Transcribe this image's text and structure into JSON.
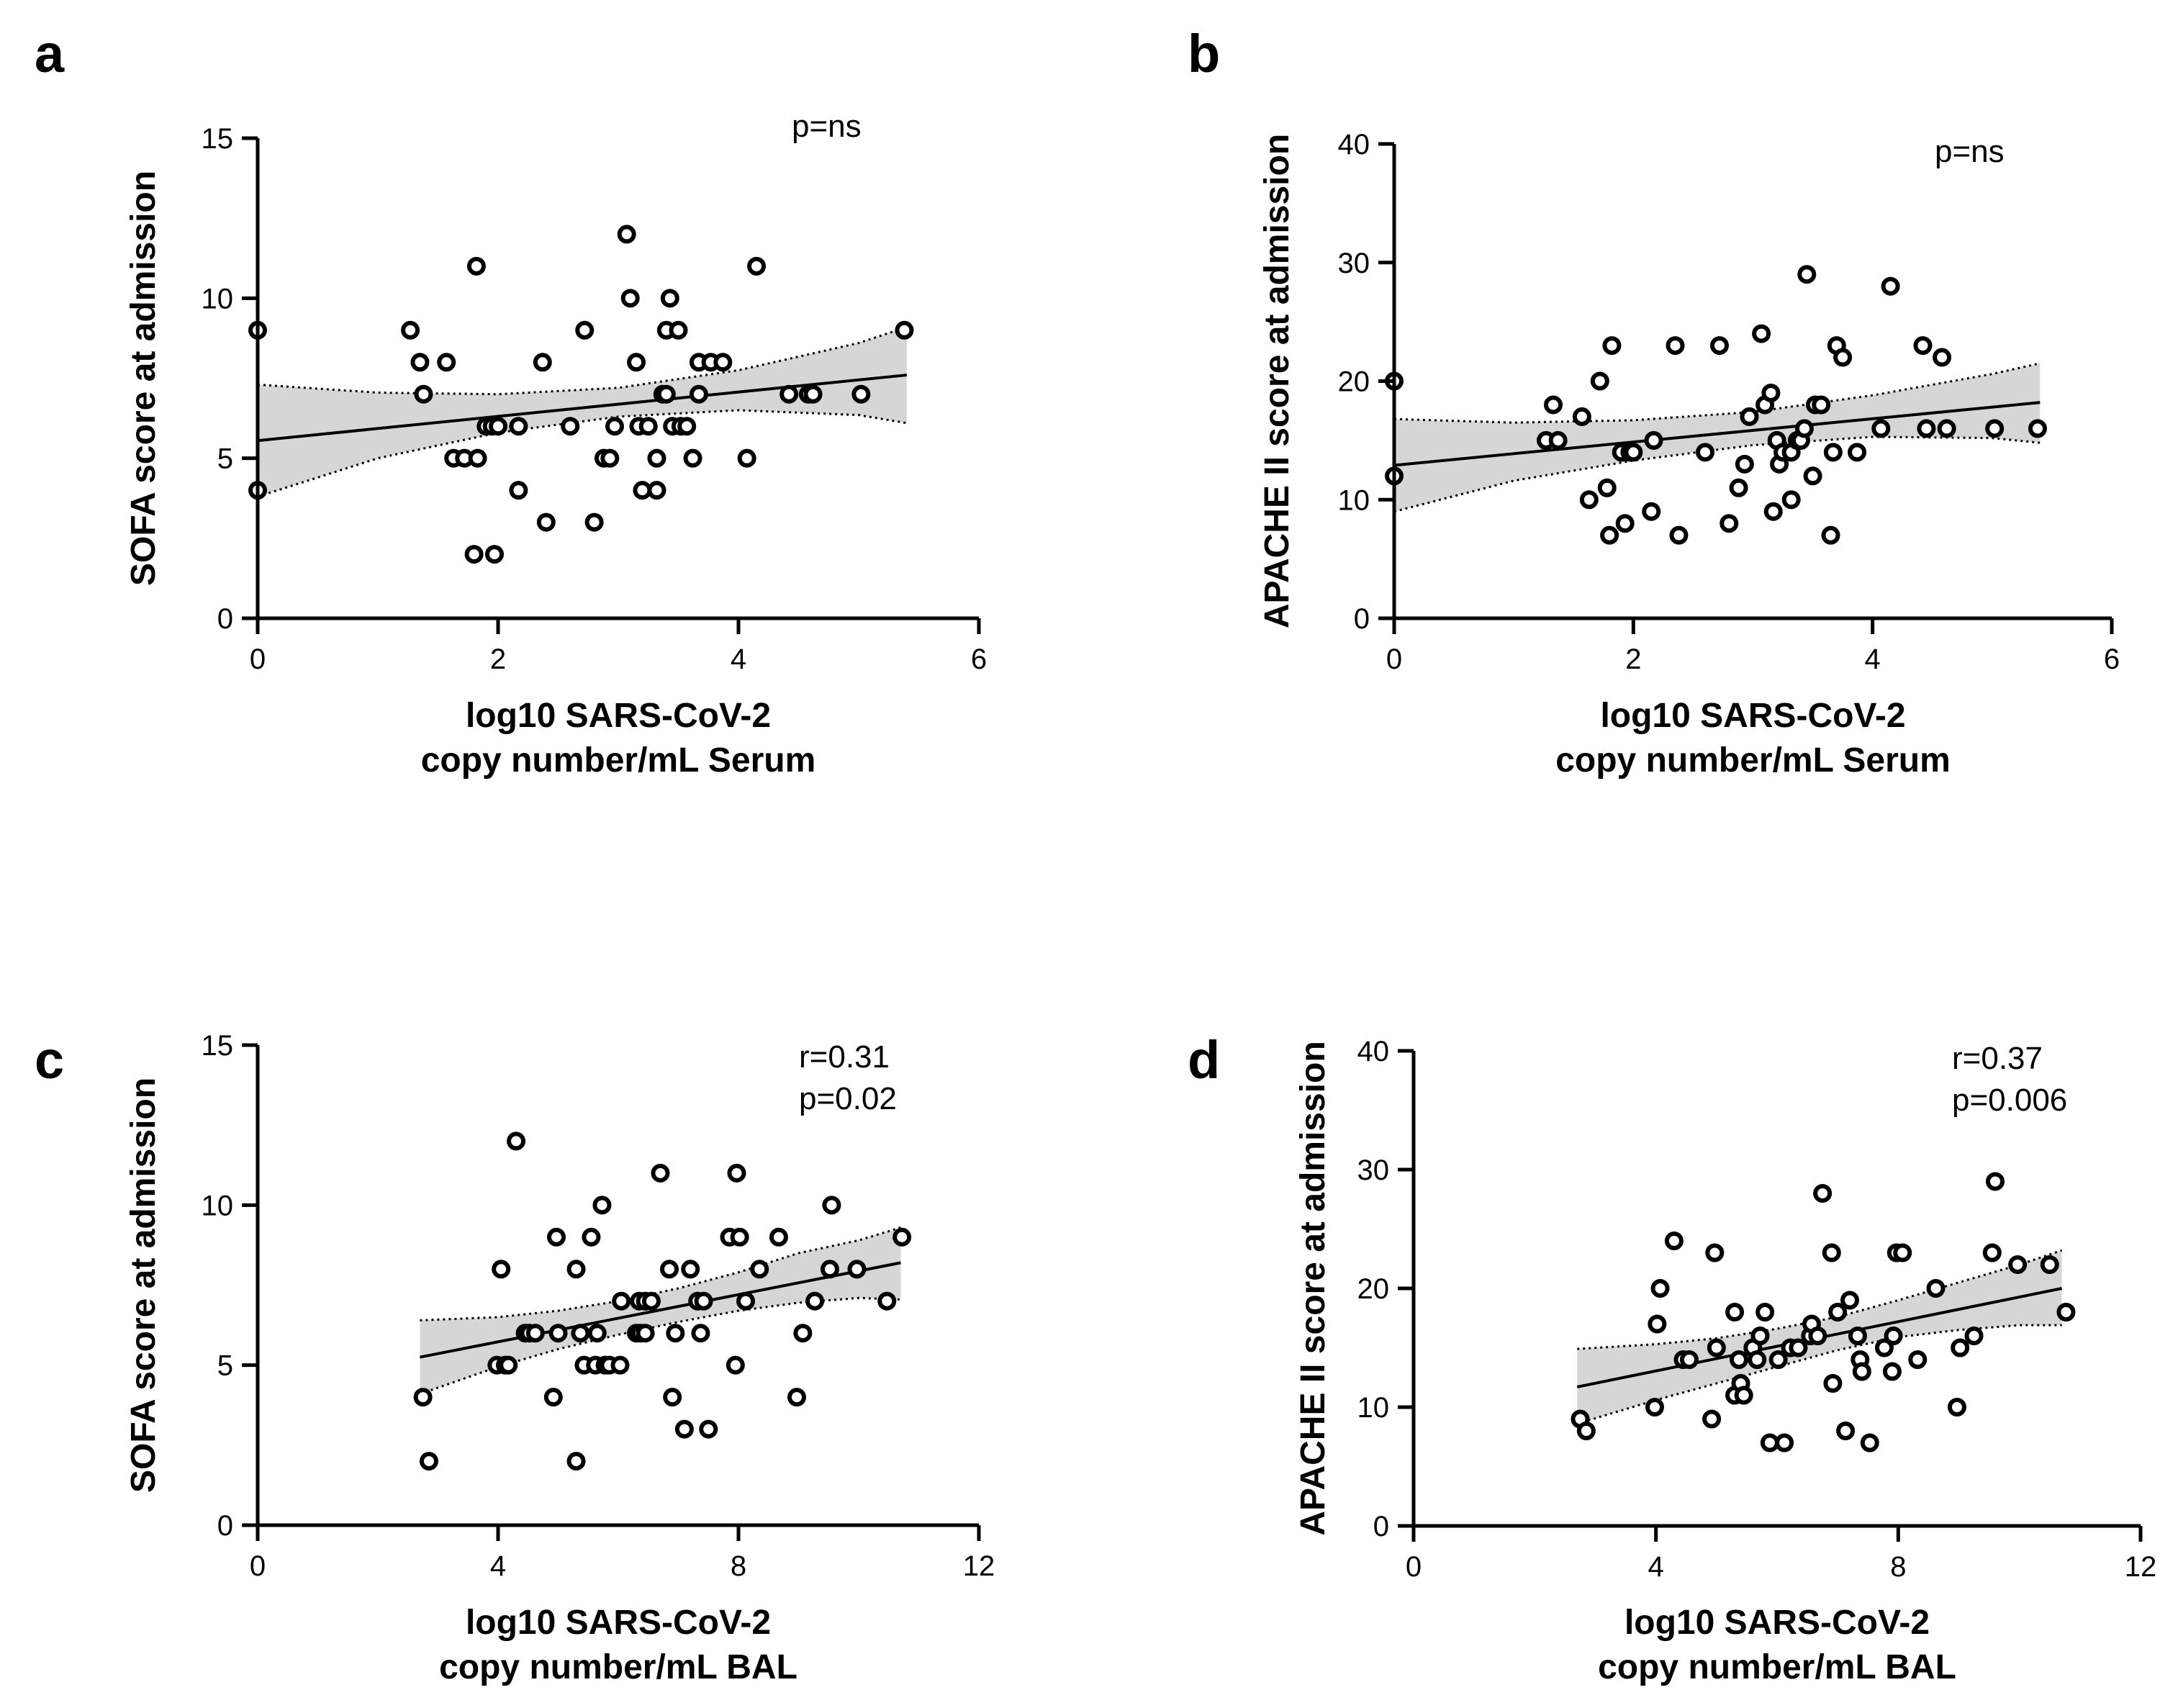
{
  "chart_data": [
    {
      "id": "a",
      "type": "scatter",
      "panel_label": "a",
      "ylabel": "SOFA score at admission",
      "xlabel_lines": [
        "log10 SARS-CoV-2",
        "copy number/mL Serum"
      ],
      "xlim": [
        0,
        6
      ],
      "ylim": [
        0,
        15
      ],
      "xticks": [
        0,
        2,
        4,
        6
      ],
      "yticks": [
        0,
        5,
        10,
        15
      ],
      "annotations": [
        "p=ns"
      ],
      "fit": {
        "x_range": [
          0,
          5.4
        ],
        "y_start": 5.55,
        "y_end": 7.6
      },
      "ci_upper": [
        [
          0,
          7.3
        ],
        [
          1,
          7.05
        ],
        [
          2,
          7.0
        ],
        [
          3,
          7.2
        ],
        [
          4,
          7.75
        ],
        [
          5,
          8.6
        ],
        [
          5.4,
          9.1
        ]
      ],
      "ci_lower": [
        [
          0,
          3.8
        ],
        [
          1,
          5.0
        ],
        [
          2,
          5.8
        ],
        [
          3,
          6.3
        ],
        [
          4,
          6.5
        ],
        [
          5,
          6.35
        ],
        [
          5.4,
          6.1
        ]
      ],
      "points": [
        [
          0,
          9
        ],
        [
          0,
          4
        ],
        [
          1.27,
          9
        ],
        [
          1.35,
          8
        ],
        [
          1.38,
          7
        ],
        [
          1.57,
          8
        ],
        [
          1.63,
          5
        ],
        [
          1.72,
          5
        ],
        [
          1.8,
          2
        ],
        [
          1.82,
          11
        ],
        [
          1.83,
          5
        ],
        [
          1.9,
          6
        ],
        [
          1.95,
          6
        ],
        [
          1.97,
          2
        ],
        [
          2.0,
          6
        ],
        [
          2.17,
          6
        ],
        [
          2.17,
          4
        ],
        [
          2.37,
          8
        ],
        [
          2.4,
          3
        ],
        [
          2.6,
          6
        ],
        [
          2.72,
          9
        ],
        [
          2.8,
          3
        ],
        [
          2.88,
          5
        ],
        [
          2.93,
          5
        ],
        [
          2.97,
          6
        ],
        [
          3.07,
          12
        ],
        [
          3.1,
          10
        ],
        [
          3.15,
          8
        ],
        [
          3.17,
          6
        ],
        [
          3.2,
          4
        ],
        [
          3.25,
          6
        ],
        [
          3.32,
          4
        ],
        [
          3.32,
          5
        ],
        [
          3.37,
          7
        ],
        [
          3.4,
          7
        ],
        [
          3.4,
          9
        ],
        [
          3.43,
          10
        ],
        [
          3.45,
          6
        ],
        [
          3.5,
          9
        ],
        [
          3.52,
          6
        ],
        [
          3.57,
          6
        ],
        [
          3.62,
          5
        ],
        [
          3.67,
          7
        ],
        [
          3.67,
          8
        ],
        [
          3.77,
          8
        ],
        [
          3.87,
          8
        ],
        [
          4.07,
          5
        ],
        [
          4.15,
          11
        ],
        [
          4.42,
          7
        ],
        [
          4.58,
          7
        ],
        [
          4.62,
          7
        ],
        [
          5.02,
          7
        ],
        [
          5.38,
          9
        ]
      ]
    },
    {
      "id": "b",
      "type": "scatter",
      "panel_label": "b",
      "ylabel": "APACHE II score at admission",
      "xlabel_lines": [
        "log10 SARS-CoV-2",
        "copy number/mL Serum"
      ],
      "xlim": [
        0,
        6
      ],
      "ylim": [
        0,
        40
      ],
      "xticks": [
        0,
        2,
        4,
        6
      ],
      "yticks": [
        0,
        10,
        20,
        30,
        40
      ],
      "annotations": [
        "p=ns"
      ],
      "fit": {
        "x_range": [
          0,
          5.4
        ],
        "y_start": 12.9,
        "y_end": 18.2
      },
      "ci_upper": [
        [
          0,
          16.8
        ],
        [
          1,
          16.5
        ],
        [
          2,
          16.7
        ],
        [
          3,
          17.4
        ],
        [
          4,
          18.8
        ],
        [
          5,
          20.6
        ],
        [
          5.4,
          21.5
        ]
      ],
      "ci_lower": [
        [
          0,
          9.0
        ],
        [
          1,
          11.6
        ],
        [
          2,
          13.3
        ],
        [
          3,
          14.6
        ],
        [
          4,
          15.3
        ],
        [
          5,
          15.2
        ],
        [
          5.4,
          14.8
        ]
      ],
      "points": [
        [
          0,
          20
        ],
        [
          0,
          12
        ],
        [
          1.27,
          15
        ],
        [
          1.33,
          18
        ],
        [
          1.37,
          15
        ],
        [
          1.57,
          17
        ],
        [
          1.63,
          10
        ],
        [
          1.72,
          20
        ],
        [
          1.78,
          11
        ],
        [
          1.8,
          7
        ],
        [
          1.82,
          23
        ],
        [
          1.9,
          14
        ],
        [
          1.93,
          8
        ],
        [
          1.97,
          14
        ],
        [
          2.0,
          14
        ],
        [
          2.15,
          9
        ],
        [
          2.17,
          15
        ],
        [
          2.35,
          23
        ],
        [
          2.38,
          7
        ],
        [
          2.6,
          14
        ],
        [
          2.72,
          23
        ],
        [
          2.8,
          8
        ],
        [
          2.88,
          11
        ],
        [
          2.93,
          13
        ],
        [
          2.97,
          17
        ],
        [
          3.07,
          24
        ],
        [
          3.1,
          18
        ],
        [
          3.15,
          19
        ],
        [
          3.17,
          9
        ],
        [
          3.2,
          15
        ],
        [
          3.22,
          13
        ],
        [
          3.25,
          14
        ],
        [
          3.32,
          10
        ],
        [
          3.32,
          14
        ],
        [
          3.37,
          15
        ],
        [
          3.4,
          15
        ],
        [
          3.43,
          16
        ],
        [
          3.45,
          29
        ],
        [
          3.5,
          12
        ],
        [
          3.52,
          18
        ],
        [
          3.57,
          18
        ],
        [
          3.65,
          7
        ],
        [
          3.67,
          14
        ],
        [
          3.7,
          23
        ],
        [
          3.75,
          22
        ],
        [
          3.87,
          14
        ],
        [
          4.07,
          16
        ],
        [
          4.15,
          28
        ],
        [
          4.42,
          23
        ],
        [
          4.45,
          16
        ],
        [
          4.58,
          22
        ],
        [
          4.62,
          16
        ],
        [
          5.02,
          16
        ],
        [
          5.38,
          16
        ]
      ]
    },
    {
      "id": "c",
      "type": "scatter",
      "panel_label": "c",
      "ylabel": "SOFA score at admission",
      "xlabel_lines": [
        "log10 SARS-CoV-2",
        "copy number/mL BAL"
      ],
      "xlim": [
        0,
        12
      ],
      "ylim": [
        0,
        15
      ],
      "xticks": [
        0,
        4,
        8,
        12
      ],
      "yticks": [
        0,
        5,
        10,
        15
      ],
      "annotations": [
        "r=0.31",
        "p=0.02"
      ],
      "fit": {
        "x_range": [
          2.7,
          10.7
        ],
        "y_start": 5.25,
        "y_end": 8.2
      },
      "ci_upper": [
        [
          2.7,
          6.4
        ],
        [
          4,
          6.5
        ],
        [
          5,
          6.7
        ],
        [
          6,
          7.0
        ],
        [
          7,
          7.4
        ],
        [
          8,
          7.9
        ],
        [
          9,
          8.5
        ],
        [
          10,
          8.9
        ],
        [
          10.7,
          9.3
        ]
      ],
      "ci_lower": [
        [
          2.7,
          4.1
        ],
        [
          4,
          4.95
        ],
        [
          5,
          5.5
        ],
        [
          6,
          5.95
        ],
        [
          7,
          6.35
        ],
        [
          8,
          6.7
        ],
        [
          9,
          6.95
        ],
        [
          10,
          7.1
        ],
        [
          10.7,
          7.05
        ]
      ],
      "points": [
        [
          2.75,
          4
        ],
        [
          2.85,
          2
        ],
        [
          3.98,
          5
        ],
        [
          4.05,
          8
        ],
        [
          4.12,
          5
        ],
        [
          4.17,
          5
        ],
        [
          4.3,
          12
        ],
        [
          4.45,
          6
        ],
        [
          4.52,
          6
        ],
        [
          4.62,
          6
        ],
        [
          4.92,
          4
        ],
        [
          4.97,
          9
        ],
        [
          5.0,
          6
        ],
        [
          5.3,
          2
        ],
        [
          5.3,
          8
        ],
        [
          5.37,
          6
        ],
        [
          5.43,
          5
        ],
        [
          5.55,
          9
        ],
        [
          5.62,
          5
        ],
        [
          5.65,
          6
        ],
        [
          5.73,
          10
        ],
        [
          5.78,
          5
        ],
        [
          5.85,
          5
        ],
        [
          6.03,
          5
        ],
        [
          6.05,
          7
        ],
        [
          6.3,
          6
        ],
        [
          6.35,
          7
        ],
        [
          6.37,
          6
        ],
        [
          6.45,
          6
        ],
        [
          6.45,
          7
        ],
        [
          6.55,
          7
        ],
        [
          6.7,
          11
        ],
        [
          6.85,
          8
        ],
        [
          6.9,
          4
        ],
        [
          6.95,
          6
        ],
        [
          7.1,
          3
        ],
        [
          7.2,
          8
        ],
        [
          7.32,
          7
        ],
        [
          7.37,
          6
        ],
        [
          7.42,
          7
        ],
        [
          7.5,
          3
        ],
        [
          7.85,
          9
        ],
        [
          7.95,
          5
        ],
        [
          7.97,
          11
        ],
        [
          8.02,
          9
        ],
        [
          8.12,
          7
        ],
        [
          8.35,
          8
        ],
        [
          8.67,
          9
        ],
        [
          8.97,
          4
        ],
        [
          9.07,
          6
        ],
        [
          9.27,
          7
        ],
        [
          9.52,
          8
        ],
        [
          9.55,
          10
        ],
        [
          9.97,
          8
        ],
        [
          10.47,
          7
        ],
        [
          10.72,
          9
        ]
      ]
    },
    {
      "id": "d",
      "type": "scatter",
      "panel_label": "d",
      "ylabel": "APACHE II score at admission",
      "xlabel_lines": [
        "log10 SARS-CoV-2",
        "copy number/mL BAL"
      ],
      "xlim": [
        0,
        12
      ],
      "ylim": [
        0,
        40
      ],
      "xticks": [
        0,
        4,
        8,
        12
      ],
      "yticks": [
        0,
        10,
        20,
        30,
        40
      ],
      "annotations": [
        "r=0.37",
        "p=0.006"
      ],
      "fit": {
        "x_range": [
          2.7,
          10.7
        ],
        "y_start": 11.7,
        "y_end": 20.0
      },
      "ci_upper": [
        [
          2.7,
          14.9
        ],
        [
          4,
          15.3
        ],
        [
          5,
          15.8
        ],
        [
          6,
          16.6
        ],
        [
          7,
          17.6
        ],
        [
          8,
          19.0
        ],
        [
          9,
          20.5
        ],
        [
          10,
          22.0
        ],
        [
          10.7,
          23.2
        ]
      ],
      "ci_lower": [
        [
          2.7,
          8.6
        ],
        [
          4,
          10.6
        ],
        [
          5,
          12.0
        ],
        [
          6,
          13.4
        ],
        [
          7,
          14.8
        ],
        [
          8,
          15.9
        ],
        [
          9,
          16.5
        ],
        [
          10,
          16.9
        ],
        [
          10.7,
          16.9
        ]
      ],
      "points": [
        [
          2.75,
          9
        ],
        [
          2.85,
          8
        ],
        [
          3.98,
          10
        ],
        [
          4.02,
          17
        ],
        [
          4.07,
          20
        ],
        [
          4.3,
          24
        ],
        [
          4.45,
          14
        ],
        [
          4.55,
          14
        ],
        [
          4.92,
          9
        ],
        [
          4.97,
          23
        ],
        [
          5.0,
          15
        ],
        [
          5.3,
          18
        ],
        [
          5.3,
          11
        ],
        [
          5.37,
          14
        ],
        [
          5.4,
          12
        ],
        [
          5.45,
          11
        ],
        [
          5.6,
          15
        ],
        [
          5.67,
          14
        ],
        [
          5.72,
          16
        ],
        [
          5.8,
          18
        ],
        [
          5.88,
          7
        ],
        [
          6.02,
          14
        ],
        [
          6.12,
          7
        ],
        [
          6.22,
          15
        ],
        [
          6.35,
          15
        ],
        [
          6.55,
          16
        ],
        [
          6.57,
          17
        ],
        [
          6.67,
          16
        ],
        [
          6.75,
          28
        ],
        [
          6.9,
          23
        ],
        [
          6.92,
          12
        ],
        [
          7.0,
          18
        ],
        [
          7.13,
          8
        ],
        [
          7.2,
          19
        ],
        [
          7.33,
          16
        ],
        [
          7.37,
          14
        ],
        [
          7.4,
          13
        ],
        [
          7.53,
          7
        ],
        [
          7.77,
          15
        ],
        [
          7.9,
          13
        ],
        [
          7.92,
          16
        ],
        [
          7.97,
          23
        ],
        [
          8.07,
          23
        ],
        [
          8.32,
          14
        ],
        [
          8.62,
          20
        ],
        [
          8.97,
          10
        ],
        [
          9.02,
          15
        ],
        [
          9.25,
          16
        ],
        [
          9.55,
          23
        ],
        [
          9.6,
          29
        ],
        [
          9.97,
          22
        ],
        [
          10.5,
          22
        ],
        [
          10.77,
          18
        ]
      ]
    }
  ]
}
